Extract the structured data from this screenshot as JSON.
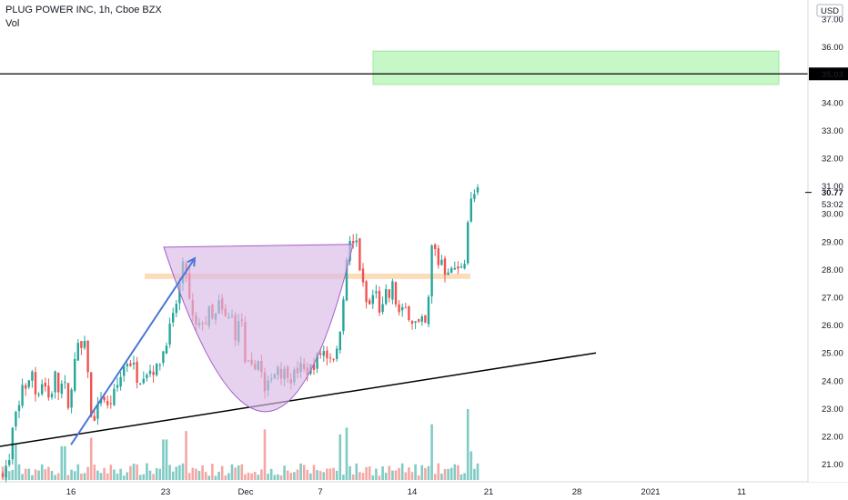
{
  "header": {
    "title": "PLUG POWER INC, 1h, Cboe BZX",
    "volume_label": "Vol"
  },
  "price_axis": {
    "currency": "USD",
    "ticks": [
      "37.00",
      "36.00",
      "35.00",
      "34.00",
      "33.00",
      "32.00",
      "31.00",
      "30.00",
      "29.00",
      "28.00",
      "27.00",
      "26.00",
      "25.00",
      "24.00",
      "23.00",
      "22.00",
      "21.00"
    ],
    "last_price_label": "30.77",
    "countdown_label": "53:02",
    "level_label": "35.03"
  },
  "date_axis": {
    "ticks": [
      "16",
      "23",
      "Dec",
      "7",
      "14",
      "21",
      "28",
      "2021",
      "11"
    ]
  },
  "colors": {
    "up": "#26a69a",
    "down": "#ef5350",
    "vol_up": "#80cbc4",
    "vol_down": "#f4a7a4",
    "cup_fill": "#d9b8e6",
    "cup_stroke": "#a15ec8",
    "arrow": "#4a78d6",
    "target_zone": "#c6f7c6",
    "resistance_band": "#fbd9b5",
    "line": "#000000"
  },
  "chart_data": {
    "type": "candlestick",
    "ylim": [
      20.5,
      37.3
    ],
    "level_line": 35.03,
    "target_zone": [
      34.65,
      35.85
    ],
    "resistance_band": [
      27.67,
      27.82
    ],
    "seed": 7,
    "path": [
      [
        0,
        20.6
      ],
      [
        5,
        20.9
      ],
      [
        10,
        21.0
      ],
      [
        15,
        22.6
      ],
      [
        20,
        22.8
      ],
      [
        25,
        24.0
      ],
      [
        30,
        23.7
      ],
      [
        36,
        24.4
      ],
      [
        40,
        23.3
      ],
      [
        45,
        24.0
      ],
      [
        50,
        23.8
      ],
      [
        55,
        23.2
      ],
      [
        60,
        24.3
      ],
      [
        65,
        23.5
      ],
      [
        70,
        24.1
      ],
      [
        75,
        22.9
      ],
      [
        80,
        24.3
      ],
      [
        85,
        25.2
      ],
      [
        90,
        25.1
      ],
      [
        95,
        25.3
      ],
      [
        100,
        22.6
      ],
      [
        106,
        22.8
      ],
      [
        112,
        23.6
      ],
      [
        118,
        23.0
      ],
      [
        124,
        23.4
      ],
      [
        130,
        23.9
      ],
      [
        136,
        24.5
      ],
      [
        140,
        24.7
      ],
      [
        146,
        24.6
      ],
      [
        152,
        24.0
      ],
      [
        158,
        24.3
      ],
      [
        165,
        24.4
      ],
      [
        172,
        24.4
      ],
      [
        178,
        24.9
      ],
      [
        184,
        25.6
      ],
      [
        190,
        26.2
      ],
      [
        195,
        27.0
      ],
      [
        200,
        27.9
      ],
      [
        203,
        28.4
      ],
      [
        206,
        27.4
      ],
      [
        210,
        26.4
      ],
      [
        214,
        26.0
      ],
      [
        218,
        25.8
      ],
      [
        222,
        26.2
      ],
      [
        226,
        26.1
      ],
      [
        230,
        26.5
      ],
      [
        235,
        26.0
      ],
      [
        240,
        26.8
      ],
      [
        245,
        26.4
      ],
      [
        250,
        26.1
      ],
      [
        254,
        26.5
      ],
      [
        258,
        25.6
      ],
      [
        262,
        26.0
      ],
      [
        266,
        26.2
      ],
      [
        270,
        24.2
      ],
      [
        274,
        24.6
      ],
      [
        278,
        24.3
      ],
      [
        282,
        24.9
      ],
      [
        286,
        24.5
      ],
      [
        290,
        23.8
      ],
      [
        293,
        23.0
      ],
      [
        296,
        24.5
      ],
      [
        300,
        24.1
      ],
      [
        305,
        24.6
      ],
      [
        310,
        24.2
      ],
      [
        315,
        24.4
      ],
      [
        320,
        24.1
      ],
      [
        325,
        24.3
      ],
      [
        330,
        24.5
      ],
      [
        335,
        24.3
      ],
      [
        340,
        24.4
      ],
      [
        345,
        24.6
      ],
      [
        350,
        24.9
      ],
      [
        355,
        25.1
      ],
      [
        360,
        24.9
      ],
      [
        366,
        24.9
      ],
      [
        371,
        25.0
      ],
      [
        374,
        26.0
      ],
      [
        378,
        27.3
      ],
      [
        381,
        28.2
      ],
      [
        384,
        29.1
      ],
      [
        388,
        28.8
      ],
      [
        392,
        29.0
      ],
      [
        396,
        27.9
      ],
      [
        400,
        27.2
      ],
      [
        404,
        26.6
      ],
      [
        408,
        26.8
      ],
      [
        412,
        27.4
      ],
      [
        416,
        26.6
      ],
      [
        420,
        26.5
      ],
      [
        424,
        27.1
      ],
      [
        428,
        27.0
      ],
      [
        432,
        27.5
      ],
      [
        436,
        26.6
      ],
      [
        440,
        26.3
      ],
      [
        444,
        26.6
      ],
      [
        448,
        26.5
      ],
      [
        452,
        26.2
      ],
      [
        456,
        26.1
      ],
      [
        460,
        26.0
      ],
      [
        464,
        26.1
      ],
      [
        467,
        25.9
      ],
      [
        471,
        26.9
      ],
      [
        474,
        28.8
      ],
      [
        478,
        28.7
      ],
      [
        482,
        28.2
      ],
      [
        486,
        28.4
      ],
      [
        490,
        27.8
      ],
      [
        494,
        28.2
      ],
      [
        497,
        27.8
      ],
      [
        500,
        28.1
      ],
      [
        504,
        27.9
      ],
      [
        508,
        28.3
      ],
      [
        511,
        28.4
      ],
      [
        513,
        29.4
      ],
      [
        516,
        30.3
      ],
      [
        520,
        30.6
      ],
      [
        523,
        30.8
      ],
      [
        526,
        30.77
      ]
    ],
    "volume_max": 2.1,
    "volume_spikes": [
      [
        18,
        1.05
      ],
      [
        70,
        1.0
      ],
      [
        99,
        1.25
      ],
      [
        181,
        1.2
      ],
      [
        205,
        1.45
      ],
      [
        292,
        1.5
      ],
      [
        373,
        1.35
      ],
      [
        381,
        1.55
      ],
      [
        474,
        1.65
      ],
      [
        513,
        2.1
      ],
      [
        517,
        0.85
      ]
    ],
    "trendline": [
      [
        0,
        21.64
      ],
      [
        655,
        25.0
      ]
    ],
    "arrow": [
      [
        78,
        21.7
      ],
      [
        214,
        28.4
      ]
    ],
    "cup": {
      "left": [
        180,
        28.77
      ],
      "right": [
        388,
        28.77
      ],
      "bottom": [
        292,
        22.88
      ]
    }
  }
}
